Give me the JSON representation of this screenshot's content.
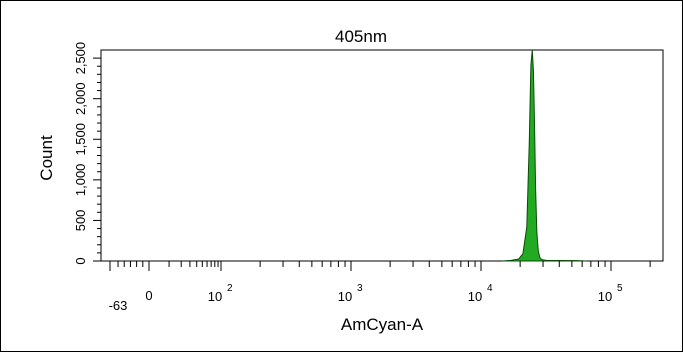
{
  "chart_data": {
    "type": "area",
    "title": "405nm",
    "xlabel": "AmCyan-A",
    "ylabel": "Count",
    "x_scale": "biexponential",
    "xlim": [
      -63,
      262143
    ],
    "ylim": [
      0,
      2600
    ],
    "x_tick_labels": [
      {
        "value": -63,
        "label": "-63"
      },
      {
        "value": 0,
        "label": "0"
      },
      {
        "value": 100,
        "base": "10",
        "exp": "2"
      },
      {
        "value": 1000,
        "base": "10",
        "exp": "3"
      },
      {
        "value": 10000,
        "base": "10",
        "exp": "4"
      },
      {
        "value": 100000,
        "base": "10",
        "exp": "5"
      }
    ],
    "y_tick_labels": [
      "0",
      "500",
      "1,000",
      "1,500",
      "2,000",
      "2,500"
    ],
    "y_ticks": [
      0,
      500,
      1000,
      1500,
      2000,
      2500
    ],
    "series": [
      {
        "color": "#22aa22",
        "x": [
          14500,
          17000,
          19500,
          21000,
          22500,
          23500,
          24200,
          24800,
          25300,
          25800,
          26300,
          26900,
          27600,
          28400,
          29500,
          32000,
          40000,
          55000,
          65000
        ],
        "values": [
          0,
          8,
          25,
          90,
          420,
          1450,
          2420,
          2600,
          2350,
          1700,
          900,
          350,
          120,
          40,
          15,
          8,
          6,
          4,
          0
        ]
      }
    ]
  }
}
